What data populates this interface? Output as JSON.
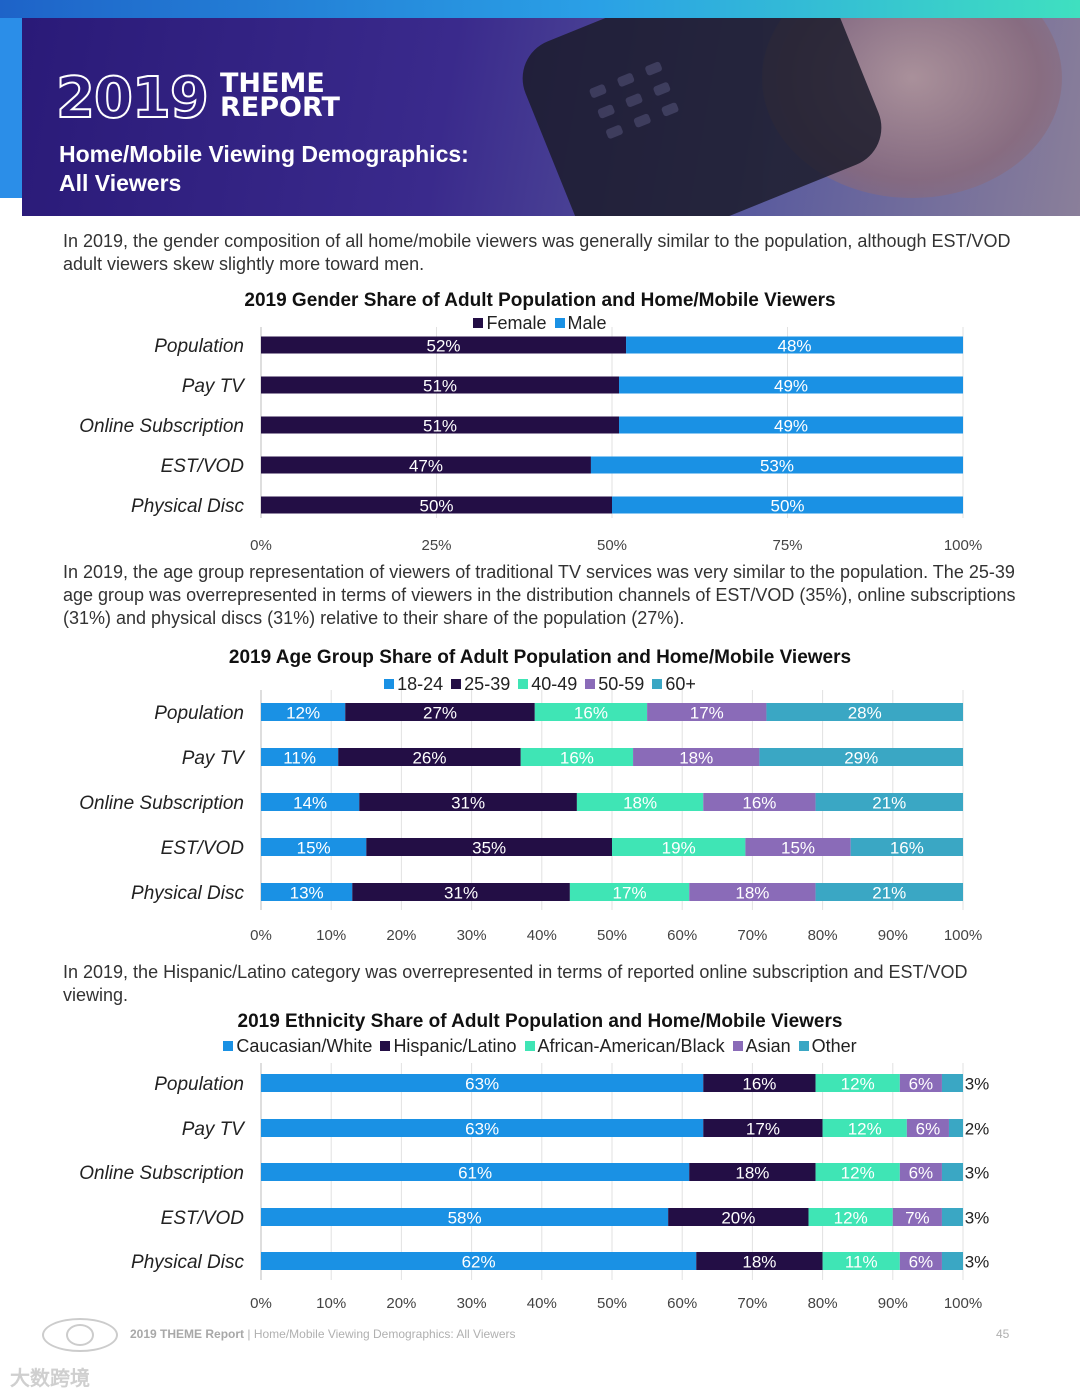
{
  "header": {
    "year": "2019",
    "report_line1": "THEME",
    "report_line2": "REPORT",
    "subtitle_line1": "Home/Mobile Viewing Demographics:",
    "subtitle_line2": "All Viewers"
  },
  "paragraphs": {
    "p1": "In 2019, the gender composition of all home/mobile viewers was generally similar to the population, although EST/VOD adult viewers skew slightly more toward men.",
    "p2": "In 2019, the age group representation of viewers of traditional TV services was very similar to the population. The 25-39 age group was overrepresented in terms of viewers in the distribution channels of EST/VOD (35%), online subscriptions (31%) and physical discs (31%) relative to their share of the population (27%).",
    "p3": "In 2019, the Hispanic/Latino category was overrepresented in terms of reported online subscription and EST/VOD viewing."
  },
  "chart_data": [
    {
      "type": "bar",
      "stacked": true,
      "orientation": "horizontal",
      "title": "2019 Gender Share of Adult Population and Home/Mobile Viewers",
      "categories": [
        "Population",
        "Pay TV",
        "Online Subscription",
        "EST/VOD",
        "Physical Disc"
      ],
      "series": [
        {
          "name": "Female",
          "color": "#230e45",
          "values": [
            52,
            51,
            51,
            47,
            50
          ]
        },
        {
          "name": "Male",
          "color": "#1a91e4",
          "values": [
            48,
            49,
            49,
            53,
            50
          ]
        }
      ],
      "xticks": [
        "0%",
        "25%",
        "50%",
        "75%",
        "100%"
      ],
      "xlim": [
        0,
        100
      ],
      "legend": "top"
    },
    {
      "type": "bar",
      "stacked": true,
      "orientation": "horizontal",
      "title": "2019 Age Group Share of Adult Population and Home/Mobile Viewers",
      "categories": [
        "Population",
        "Pay TV",
        "Online Subscription",
        "EST/VOD",
        "Physical Disc"
      ],
      "series": [
        {
          "name": "18-24",
          "color": "#1a91e4",
          "values": [
            12,
            11,
            14,
            15,
            13
          ]
        },
        {
          "name": "25-39",
          "color": "#230e45",
          "values": [
            27,
            26,
            31,
            35,
            31
          ]
        },
        {
          "name": "40-49",
          "color": "#3fe5b5",
          "values": [
            16,
            16,
            18,
            19,
            17
          ]
        },
        {
          "name": "50-59",
          "color": "#8a6bb8",
          "values": [
            17,
            18,
            16,
            15,
            18
          ]
        },
        {
          "name": "60+",
          "color": "#3aa7c4",
          "values": [
            28,
            29,
            21,
            16,
            21
          ]
        }
      ],
      "xticks": [
        "0%",
        "10%",
        "20%",
        "30%",
        "40%",
        "50%",
        "60%",
        "70%",
        "80%",
        "90%",
        "100%"
      ],
      "xlim": [
        0,
        100
      ],
      "legend": "top"
    },
    {
      "type": "bar",
      "stacked": true,
      "orientation": "horizontal",
      "title": "2019 Ethnicity Share of Adult Population and Home/Mobile Viewers",
      "categories": [
        "Population",
        "Pay TV",
        "Online Subscription",
        "EST/VOD",
        "Physical Disc"
      ],
      "series": [
        {
          "name": "Caucasian/White",
          "color": "#1a91e4",
          "values": [
            63,
            63,
            61,
            58,
            62
          ]
        },
        {
          "name": "Hispanic/Latino",
          "color": "#230e45",
          "values": [
            16,
            17,
            18,
            20,
            18
          ]
        },
        {
          "name": "African-American/Black",
          "color": "#3fe5b5",
          "values": [
            12,
            12,
            12,
            12,
            11
          ]
        },
        {
          "name": "Asian",
          "color": "#8a6bb8",
          "values": [
            6,
            6,
            6,
            7,
            6
          ]
        },
        {
          "name": "Other",
          "color": "#3aa7c4",
          "values": [
            3,
            2,
            3,
            3,
            3
          ]
        }
      ],
      "xticks": [
        "0%",
        "10%",
        "20%",
        "30%",
        "40%",
        "50%",
        "60%",
        "70%",
        "80%",
        "90%",
        "100%"
      ],
      "xlim": [
        0,
        100
      ],
      "legend": "top"
    }
  ],
  "footer": {
    "brand": "2019 THEME Report",
    "separator": " | ",
    "section": "Home/Mobile Viewing Demographics: All Viewers",
    "page": "45",
    "watermark": "大数跨境"
  }
}
